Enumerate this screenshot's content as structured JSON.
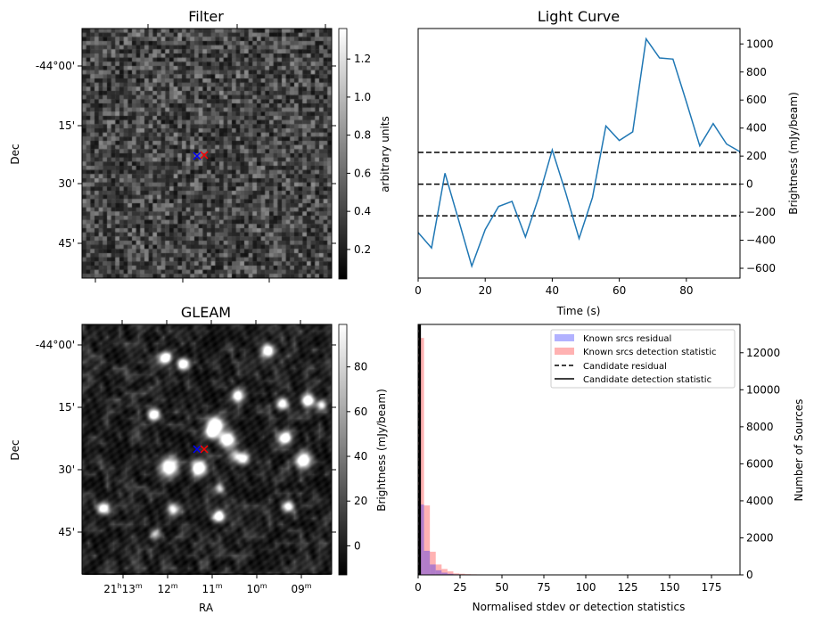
{
  "chart_data": [
    {
      "type": "heatmap",
      "title": "Filter",
      "ylabel": "Dec",
      "yticks": [
        "-44°00'",
        "15'",
        "30'",
        "45'"
      ],
      "colorbar": {
        "label": "arbitrary units",
        "ticks": [
          "0.2",
          "0.4",
          "0.6",
          "0.8",
          "1.0",
          "1.2"
        ],
        "range": [
          0.045,
          1.36
        ]
      },
      "markers": [
        {
          "name": "blue-cross",
          "color": "#0000ff"
        },
        {
          "name": "red-cross",
          "color": "#ff0000"
        }
      ]
    },
    {
      "type": "line",
      "title": "Light Curve",
      "xlabel": "Time (s)",
      "ylabel": "Brightness (mJy/beam)",
      "xlim": [
        0,
        96
      ],
      "ylim": [
        -670,
        1110
      ],
      "xticks": [
        "0",
        "20",
        "40",
        "60",
        "80"
      ],
      "yticks": [
        "−600",
        "−400",
        "−200",
        "0",
        "200",
        "400",
        "600",
        "800",
        "1000"
      ],
      "x": [
        0,
        4,
        8,
        12,
        16,
        20,
        24,
        28,
        32,
        36,
        40,
        44,
        48,
        52,
        56,
        60,
        64,
        68,
        72,
        76,
        80,
        84,
        88,
        92,
        96
      ],
      "y": [
        -345,
        -455,
        78,
        -250,
        -585,
        -324,
        -159,
        -123,
        -377,
        -91,
        244,
        -60,
        -388,
        -95,
        415,
        311,
        373,
        1036,
        900,
        892,
        587,
        273,
        432,
        286,
        231
      ],
      "series_color": "#1f77b4",
      "hlines": [
        226,
        0,
        -226
      ]
    },
    {
      "type": "heatmap",
      "title": "GLEAM",
      "xlabel": "RA",
      "ylabel": "Dec",
      "xticks": [
        {
          "h": "21",
          "m": "13"
        },
        {
          "m": "12"
        },
        {
          "m": "11"
        },
        {
          "m": "10"
        },
        {
          "m": "09"
        }
      ],
      "yticks": [
        "-44°00'",
        "15'",
        "30'",
        "45'"
      ],
      "colorbar": {
        "label": "Brightness (mJy/beam)",
        "ticks": [
          "0",
          "20",
          "40",
          "60",
          "80"
        ],
        "range": [
          -13,
          99
        ]
      },
      "markers": [
        {
          "name": "blue-cross",
          "color": "#0000ff"
        },
        {
          "name": "red-cross",
          "color": "#ff0000"
        }
      ]
    },
    {
      "type": "bar",
      "xlabel": "Normalised stdev or detection statistics",
      "ylabel": "Number of Sources",
      "xlim": [
        0,
        192
      ],
      "ylim": [
        0,
        13530
      ],
      "xticks": [
        "0",
        "25",
        "50",
        "75",
        "100",
        "125",
        "150",
        "175"
      ],
      "yticks": [
        "0",
        "2000",
        "4000",
        "6000",
        "8000",
        "10000",
        "12000"
      ],
      "bin_width": 3.5,
      "series": [
        {
          "name": "Known srcs residual",
          "color": "#0000ff",
          "alpha": 0.3,
          "values": [
            3800,
            1300,
            560,
            250,
            120,
            60,
            30,
            20,
            15,
            10,
            10,
            8,
            6,
            5,
            5,
            4,
            4,
            3,
            3,
            3,
            2,
            2,
            2,
            2,
            1,
            1,
            1,
            1,
            1,
            1,
            1
          ]
        },
        {
          "name": "Known srcs detection statistic",
          "color": "#ff0000",
          "alpha": 0.3,
          "values": [
            12800,
            3750,
            1250,
            560,
            320,
            190,
            80,
            60,
            40,
            30,
            25,
            20,
            15,
            12,
            10,
            10,
            8,
            8,
            6,
            6,
            5,
            5,
            5,
            4,
            4,
            4,
            3,
            3,
            3,
            3,
            3,
            2,
            2,
            2,
            2,
            2,
            2,
            2,
            2,
            2,
            2,
            2,
            2,
            1,
            1,
            1,
            1,
            1,
            1,
            1,
            1,
            1,
            1
          ]
        }
      ],
      "candidate_residual": 0.6,
      "candidate_detection_statistic": 1.0,
      "legend": {
        "position": "top-right",
        "entries": [
          "Known srcs residual",
          "Known srcs detection statistic",
          "Candidate residual",
          "Candidate detection statistic"
        ]
      }
    }
  ]
}
